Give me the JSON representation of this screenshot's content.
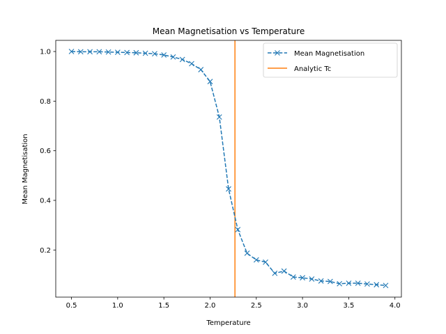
{
  "chart_data": {
    "type": "line",
    "title": "Mean Magnetisation vs Temperature",
    "xlabel": "Temperature",
    "ylabel": "Mean Magnetisation",
    "xlim": [
      0.33,
      4.07
    ],
    "ylim": [
      0.01,
      1.045
    ],
    "xticks": [
      0.5,
      1.0,
      1.5,
      2.0,
      2.5,
      3.0,
      3.5,
      4.0
    ],
    "xtick_labels": [
      "0.5",
      "1.0",
      "1.5",
      "2.0",
      "2.5",
      "3.0",
      "3.5",
      "4.0"
    ],
    "yticks": [
      0.2,
      0.4,
      0.6,
      0.8,
      1.0
    ],
    "ytick_labels": [
      "0.2",
      "0.4",
      "0.6",
      "0.8",
      "1.0"
    ],
    "grid": false,
    "legend_position": "top-right",
    "series": [
      {
        "name": "Mean Magnetisation",
        "color": "#1f77b4",
        "line_style": "dashed",
        "marker": "x",
        "x": [
          0.5,
          0.6,
          0.7,
          0.8,
          0.9,
          1.0,
          1.1,
          1.2,
          1.3,
          1.4,
          1.5,
          1.6,
          1.7,
          1.8,
          1.9,
          2.0,
          2.1,
          2.2,
          2.3,
          2.4,
          2.5,
          2.6,
          2.7,
          2.8,
          2.9,
          3.0,
          3.1,
          3.2,
          3.3,
          3.4,
          3.5,
          3.6,
          3.7,
          3.8,
          3.9
        ],
        "y": [
          1.0,
          0.999,
          0.999,
          0.999,
          0.998,
          0.997,
          0.996,
          0.995,
          0.993,
          0.991,
          0.986,
          0.978,
          0.968,
          0.951,
          0.927,
          0.879,
          0.736,
          0.446,
          0.282,
          0.187,
          0.16,
          0.151,
          0.106,
          0.115,
          0.091,
          0.088,
          0.083,
          0.075,
          0.073,
          0.064,
          0.066,
          0.066,
          0.063,
          0.06,
          0.057
        ]
      }
    ],
    "reference_lines": [
      {
        "name": "Analytic Tc",
        "orientation": "vertical",
        "x": 2.269,
        "color": "#ff7f0e"
      }
    ]
  }
}
